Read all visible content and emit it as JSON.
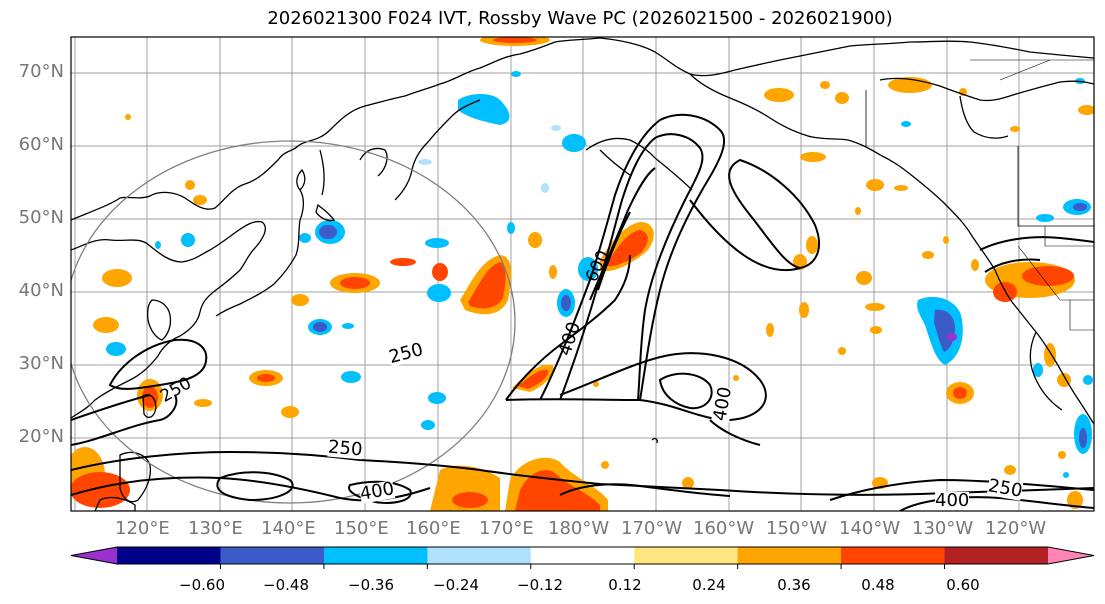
{
  "title": "2026021300 F024 IVT, Rossby Wave PC (2026021500 - 2026021900)",
  "lat_labels": [
    "70°N",
    "60°N",
    "50°N",
    "40°N",
    "30°N",
    "20°N"
  ],
  "lon_labels": [
    "120°E",
    "130°E",
    "140°E",
    "150°E",
    "160°E",
    "170°E",
    "180°W",
    "170°W",
    "160°W",
    "150°W",
    "140°W",
    "130°W",
    "120°W"
  ],
  "contour_labels": [
    "250",
    "400",
    "600",
    "250",
    "400",
    "250",
    "400",
    "250",
    "400"
  ],
  "colorbar": {
    "ticks": [
      "−0.60",
      "−0.48",
      "−0.36",
      "−0.24",
      "−0.12",
      "0.12",
      "0.24",
      "0.36",
      "0.48",
      "0.60"
    ],
    "colors": [
      "#9932cc",
      "#00008b",
      "#3a5bc8",
      "#00bfff",
      "#b0e2ff",
      "#ffffff",
      "#ffe680",
      "#ffa500",
      "#ff4500",
      "#b22222",
      "#ff85b4"
    ]
  },
  "colors": {
    "land_outline": "#000000",
    "grid": "#a0a0a0",
    "circle": "#808080",
    "axis_label": "#777777"
  }
}
